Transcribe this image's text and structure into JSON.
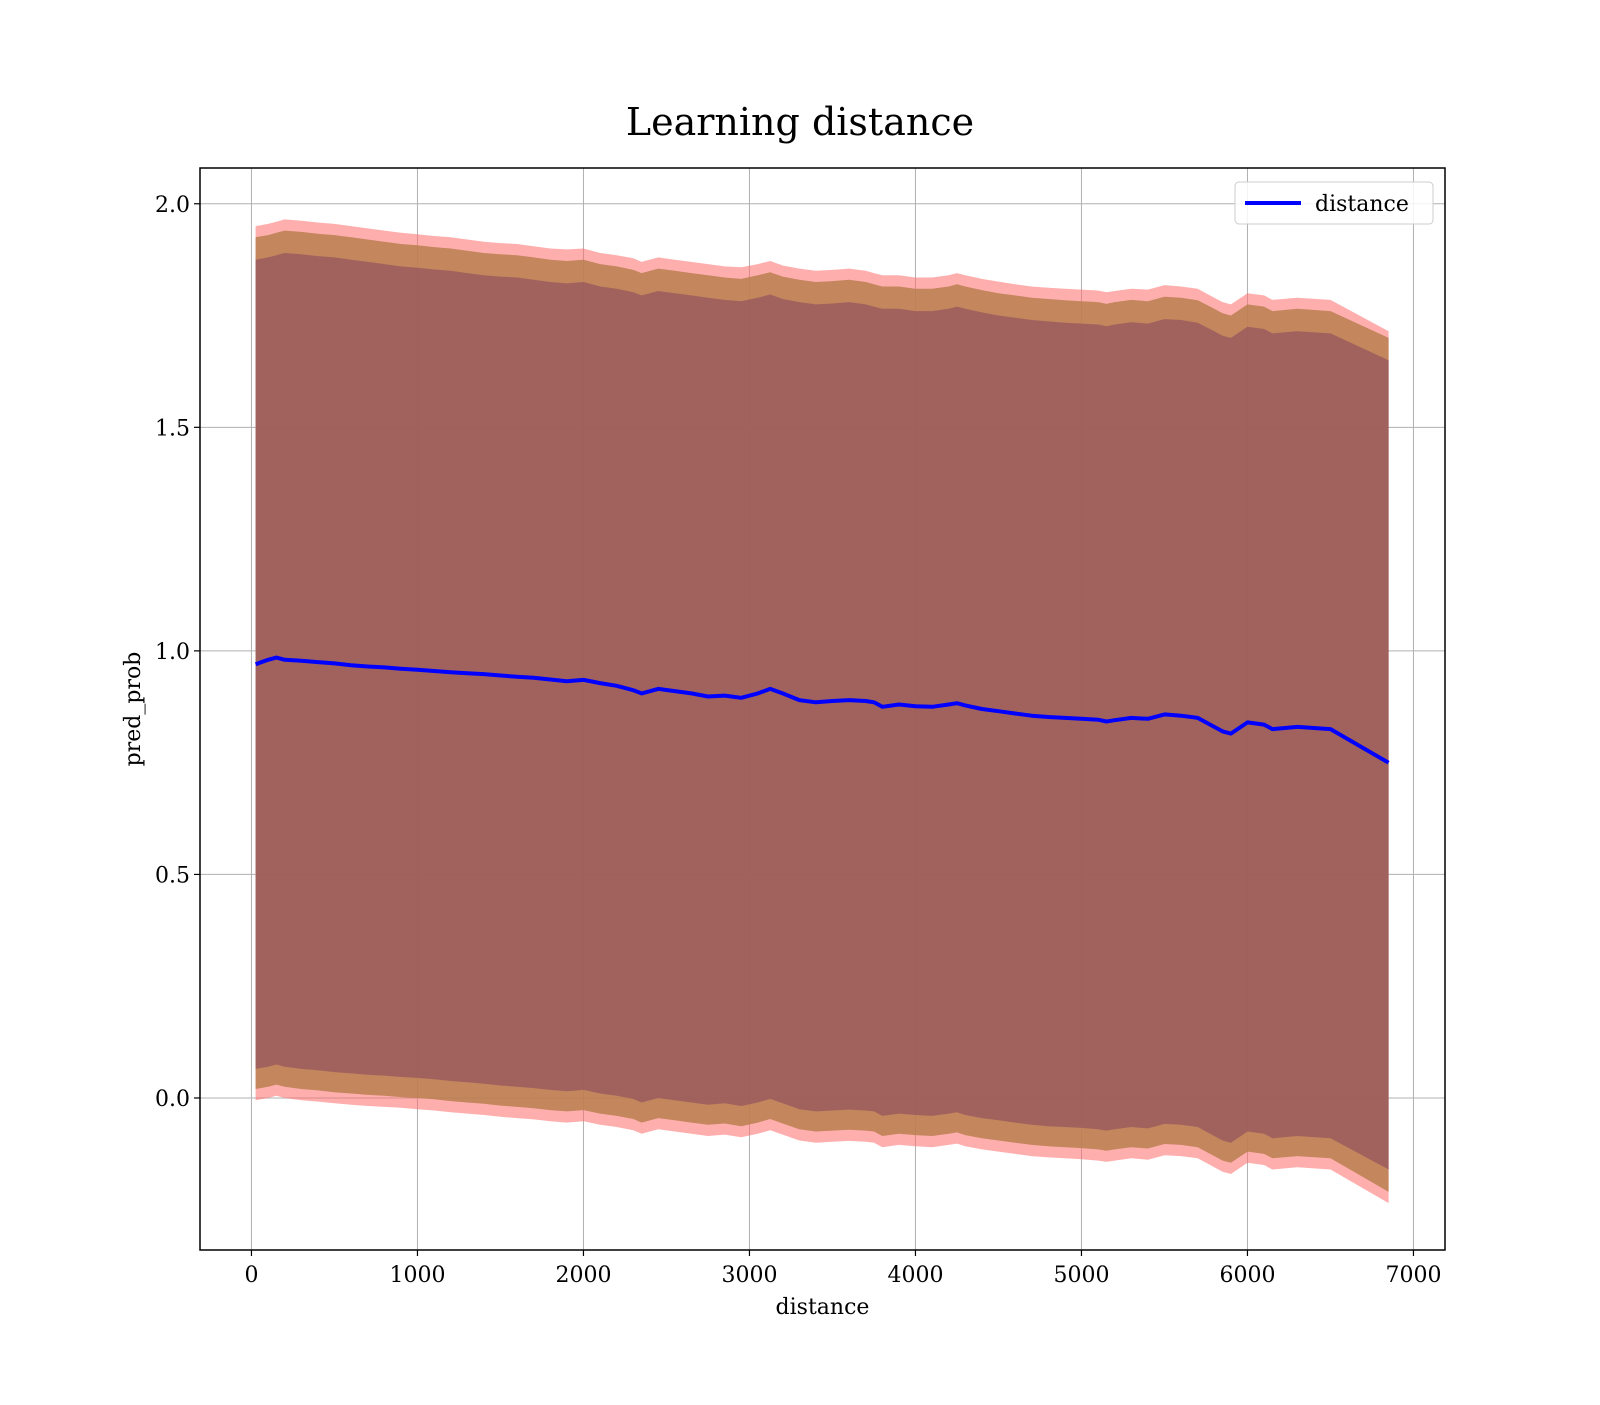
{
  "chart_data": {
    "type": "line",
    "title": "Learning distance",
    "xlabel": "distance",
    "ylabel": "pred_prob",
    "xlim": [
      -310,
      7190
    ],
    "ylim": [
      -0.34,
      2.08
    ],
    "xticks": [
      0,
      1000,
      2000,
      3000,
      4000,
      5000,
      6000,
      7000
    ],
    "xtick_labels": [
      "0",
      "1000",
      "2000",
      "3000",
      "4000",
      "5000",
      "6000",
      "7000"
    ],
    "yticks": [
      0.0,
      0.5,
      1.0,
      1.5,
      2.0
    ],
    "ytick_labels": [
      "0.0",
      "0.5",
      "1.0",
      "1.5",
      "2.0"
    ],
    "grid": true,
    "legend": {
      "position": "upper-right",
      "entries": [
        "distance"
      ]
    },
    "colors": {
      "line": "#0000ff",
      "band_outer": "#ff6b6b",
      "band_middle": "#b87f4f",
      "band_inner": "#8b4b5f",
      "grid": "#b0b0b0"
    },
    "series": [
      {
        "name": "distance",
        "x": [
          25,
          100,
          150,
          200,
          300,
          400,
          500,
          600,
          700,
          800,
          900,
          1000,
          1100,
          1200,
          1300,
          1400,
          1500,
          1600,
          1700,
          1800,
          1900,
          2000,
          2100,
          2200,
          2300,
          2350,
          2450,
          2550,
          2650,
          2750,
          2850,
          2950,
          3050,
          3125,
          3200,
          3300,
          3400,
          3500,
          3600,
          3700,
          3750,
          3800,
          3900,
          4000,
          4100,
          4200,
          4250,
          4300,
          4400,
          4500,
          4600,
          4700,
          4800,
          4900,
          5000,
          5100,
          5150,
          5200,
          5300,
          5400,
          5500,
          5600,
          5700,
          5800,
          5850,
          5900,
          6000,
          6100,
          6150,
          6300,
          6500,
          6850
        ],
        "y": [
          0.97,
          0.98,
          0.985,
          0.98,
          0.978,
          0.975,
          0.972,
          0.968,
          0.965,
          0.963,
          0.96,
          0.958,
          0.955,
          0.952,
          0.95,
          0.948,
          0.945,
          0.942,
          0.94,
          0.936,
          0.932,
          0.935,
          0.928,
          0.922,
          0.912,
          0.905,
          0.915,
          0.91,
          0.905,
          0.898,
          0.9,
          0.895,
          0.905,
          0.915,
          0.905,
          0.89,
          0.885,
          0.888,
          0.89,
          0.888,
          0.885,
          0.875,
          0.88,
          0.876,
          0.875,
          0.88,
          0.883,
          0.878,
          0.87,
          0.865,
          0.86,
          0.855,
          0.852,
          0.85,
          0.848,
          0.846,
          0.842,
          0.845,
          0.85,
          0.848,
          0.858,
          0.855,
          0.85,
          0.83,
          0.82,
          0.815,
          0.84,
          0.835,
          0.825,
          0.83,
          0.825,
          0.75
        ],
        "outer_upper": [
          1.95,
          1.955,
          1.96,
          1.965,
          1.962,
          1.958,
          1.955,
          1.95,
          1.945,
          1.94,
          1.935,
          1.932,
          1.928,
          1.925,
          1.92,
          1.915,
          1.912,
          1.91,
          1.905,
          1.9,
          1.898,
          1.9,
          1.89,
          1.885,
          1.878,
          1.87,
          1.88,
          1.875,
          1.87,
          1.865,
          1.86,
          1.858,
          1.865,
          1.872,
          1.862,
          1.855,
          1.85,
          1.852,
          1.855,
          1.85,
          1.845,
          1.84,
          1.84,
          1.835,
          1.835,
          1.84,
          1.845,
          1.84,
          1.832,
          1.826,
          1.82,
          1.815,
          1.812,
          1.81,
          1.808,
          1.806,
          1.802,
          1.805,
          1.81,
          1.808,
          1.818,
          1.815,
          1.81,
          1.79,
          1.78,
          1.775,
          1.8,
          1.795,
          1.785,
          1.79,
          1.785,
          1.715
        ],
        "outer_lower": [
          -0.005,
          0.0,
          0.005,
          0.0,
          -0.005,
          -0.008,
          -0.012,
          -0.015,
          -0.018,
          -0.02,
          -0.022,
          -0.025,
          -0.028,
          -0.032,
          -0.035,
          -0.038,
          -0.042,
          -0.045,
          -0.048,
          -0.052,
          -0.055,
          -0.052,
          -0.06,
          -0.065,
          -0.072,
          -0.08,
          -0.07,
          -0.075,
          -0.08,
          -0.085,
          -0.082,
          -0.088,
          -0.08,
          -0.072,
          -0.082,
          -0.095,
          -0.1,
          -0.098,
          -0.096,
          -0.098,
          -0.1,
          -0.11,
          -0.105,
          -0.108,
          -0.11,
          -0.105,
          -0.102,
          -0.108,
          -0.115,
          -0.12,
          -0.125,
          -0.13,
          -0.133,
          -0.135,
          -0.137,
          -0.14,
          -0.143,
          -0.14,
          -0.135,
          -0.138,
          -0.128,
          -0.13,
          -0.135,
          -0.155,
          -0.165,
          -0.17,
          -0.145,
          -0.15,
          -0.16,
          -0.155,
          -0.16,
          -0.235
        ],
        "middle_upper": [
          1.925,
          1.93,
          1.935,
          1.94,
          1.937,
          1.933,
          1.93,
          1.925,
          1.92,
          1.915,
          1.91,
          1.907,
          1.903,
          1.9,
          1.895,
          1.89,
          1.887,
          1.885,
          1.88,
          1.875,
          1.872,
          1.875,
          1.865,
          1.86,
          1.852,
          1.845,
          1.855,
          1.85,
          1.845,
          1.84,
          1.835,
          1.832,
          1.84,
          1.847,
          1.837,
          1.83,
          1.825,
          1.827,
          1.83,
          1.825,
          1.82,
          1.815,
          1.815,
          1.81,
          1.81,
          1.815,
          1.82,
          1.815,
          1.807,
          1.8,
          1.795,
          1.79,
          1.787,
          1.784,
          1.782,
          1.78,
          1.776,
          1.78,
          1.785,
          1.782,
          1.792,
          1.79,
          1.784,
          1.765,
          1.755,
          1.75,
          1.775,
          1.77,
          1.76,
          1.765,
          1.76,
          1.7
        ],
        "middle_lower": [
          0.02,
          0.025,
          0.03,
          0.025,
          0.02,
          0.017,
          0.013,
          0.01,
          0.007,
          0.005,
          0.002,
          0.0,
          -0.003,
          -0.007,
          -0.01,
          -0.013,
          -0.017,
          -0.02,
          -0.023,
          -0.027,
          -0.03,
          -0.027,
          -0.035,
          -0.04,
          -0.047,
          -0.055,
          -0.045,
          -0.05,
          -0.055,
          -0.06,
          -0.057,
          -0.063,
          -0.055,
          -0.047,
          -0.057,
          -0.07,
          -0.075,
          -0.073,
          -0.071,
          -0.073,
          -0.075,
          -0.085,
          -0.08,
          -0.083,
          -0.085,
          -0.08,
          -0.077,
          -0.083,
          -0.09,
          -0.095,
          -0.1,
          -0.105,
          -0.108,
          -0.11,
          -0.112,
          -0.115,
          -0.118,
          -0.115,
          -0.11,
          -0.113,
          -0.103,
          -0.105,
          -0.11,
          -0.13,
          -0.14,
          -0.145,
          -0.12,
          -0.125,
          -0.135,
          -0.13,
          -0.135,
          -0.21
        ],
        "inner_upper": [
          1.875,
          1.88,
          1.885,
          1.89,
          1.887,
          1.883,
          1.88,
          1.875,
          1.87,
          1.865,
          1.86,
          1.857,
          1.853,
          1.85,
          1.845,
          1.84,
          1.837,
          1.835,
          1.83,
          1.825,
          1.822,
          1.825,
          1.815,
          1.81,
          1.802,
          1.795,
          1.805,
          1.8,
          1.795,
          1.79,
          1.785,
          1.782,
          1.79,
          1.797,
          1.787,
          1.78,
          1.775,
          1.777,
          1.78,
          1.775,
          1.77,
          1.765,
          1.765,
          1.76,
          1.76,
          1.765,
          1.77,
          1.765,
          1.757,
          1.75,
          1.745,
          1.74,
          1.737,
          1.734,
          1.732,
          1.73,
          1.726,
          1.73,
          1.735,
          1.732,
          1.742,
          1.74,
          1.734,
          1.715,
          1.705,
          1.7,
          1.725,
          1.72,
          1.71,
          1.715,
          1.71,
          1.65
        ],
        "inner_lower": [
          0.065,
          0.07,
          0.075,
          0.07,
          0.065,
          0.062,
          0.058,
          0.055,
          0.052,
          0.05,
          0.047,
          0.045,
          0.042,
          0.038,
          0.035,
          0.032,
          0.028,
          0.025,
          0.022,
          0.018,
          0.015,
          0.018,
          0.01,
          0.005,
          -0.002,
          -0.01,
          0.0,
          -0.005,
          -0.01,
          -0.015,
          -0.012,
          -0.018,
          -0.01,
          -0.002,
          -0.012,
          -0.025,
          -0.03,
          -0.028,
          -0.026,
          -0.028,
          -0.03,
          -0.04,
          -0.035,
          -0.038,
          -0.04,
          -0.035,
          -0.032,
          -0.038,
          -0.045,
          -0.05,
          -0.055,
          -0.06,
          -0.063,
          -0.065,
          -0.067,
          -0.07,
          -0.073,
          -0.07,
          -0.065,
          -0.068,
          -0.058,
          -0.06,
          -0.065,
          -0.085,
          -0.095,
          -0.1,
          -0.075,
          -0.08,
          -0.09,
          -0.085,
          -0.09,
          -0.16
        ]
      }
    ]
  }
}
